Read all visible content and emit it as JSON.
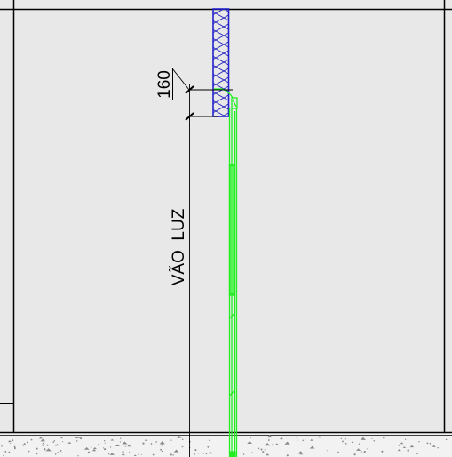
{
  "drawing": {
    "dimension_label": "160",
    "opening_label": "VÃO  LUZ",
    "colors": {
      "background": "#e8e8e8",
      "line": "#000000",
      "panel": "#2222cc",
      "panel_hatch": "#1f1fbf",
      "frame": "#22ee22",
      "slab_fill": "#f2f2f2",
      "slab_speckle": "#8a8a8a"
    },
    "elements": [
      "sandwich-wall-panel",
      "roll-up-door-frame",
      "concrete-floor-slab",
      "dimension-line",
      "opening-height-line"
    ]
  }
}
